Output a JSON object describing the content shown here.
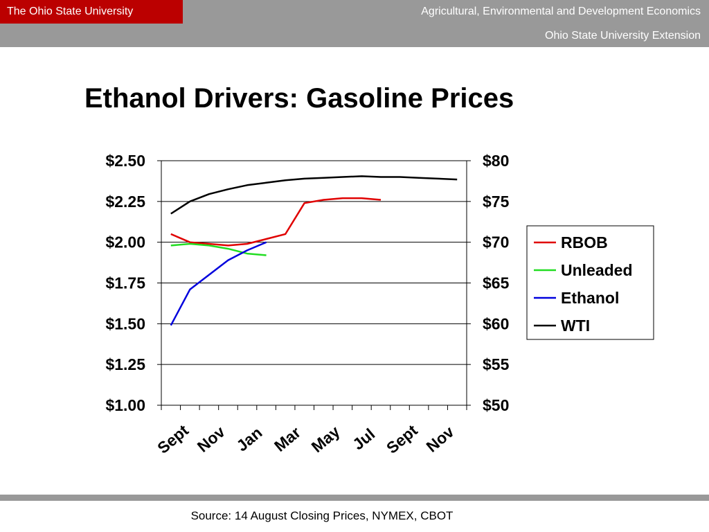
{
  "header": {
    "university": "The Ohio State University",
    "department": "Agricultural, Environmental and Development Economics",
    "extension": "Ohio State University Extension"
  },
  "slide_title": "Ethanol Drivers: Gasoline Prices",
  "source": "Source: 14 August Closing Prices, NYMEX, CBOT",
  "colors": {
    "header_gray": "#999999",
    "osu_red": "#bb0000",
    "rbob": "#e00000",
    "unleaded": "#22dd22",
    "ethanol": "#0000dd",
    "wti": "#000000"
  },
  "chart_data": {
    "type": "line",
    "title": "",
    "xlabel": "",
    "ylabel": "",
    "y_tick_labels": [
      "$2.50",
      "$2.25",
      "$2.00",
      "$1.75",
      "$1.50",
      "$1.25",
      "$1.00"
    ],
    "y2_tick_labels": [
      "$80",
      "$75",
      "$70",
      "$65",
      "$60",
      "$55",
      "$50"
    ],
    "x_tick_labels": [
      "Sept",
      "Nov",
      "Jan",
      "Mar",
      "May",
      "Jul",
      "Sept",
      "Nov"
    ],
    "ylim": [
      1.0,
      2.5
    ],
    "y2lim": [
      50,
      80
    ],
    "grid": true,
    "legend_position": "right",
    "series": [
      {
        "name": "RBOB",
        "axis": "left",
        "color": "#e00000",
        "values": [
          2.05,
          2.0,
          1.99,
          1.98,
          1.99,
          2.02,
          2.05,
          2.24,
          2.26,
          2.27,
          2.27,
          2.26
        ]
      },
      {
        "name": "Unleaded",
        "axis": "left",
        "color": "#22dd22",
        "values": [
          1.98,
          1.99,
          1.98,
          1.96,
          1.93,
          1.92
        ]
      },
      {
        "name": "Ethanol",
        "axis": "left",
        "color": "#0000dd",
        "values": [
          1.49,
          1.71,
          1.8,
          1.89,
          1.95,
          2.0
        ]
      },
      {
        "name": "WTI",
        "axis": "right",
        "color": "#000000",
        "values": [
          73.5,
          75.0,
          75.9,
          76.5,
          77.0,
          77.3,
          77.6,
          77.8,
          77.9,
          78.0,
          78.1,
          78.0,
          78.0,
          77.9,
          77.8,
          77.7
        ]
      }
    ]
  }
}
